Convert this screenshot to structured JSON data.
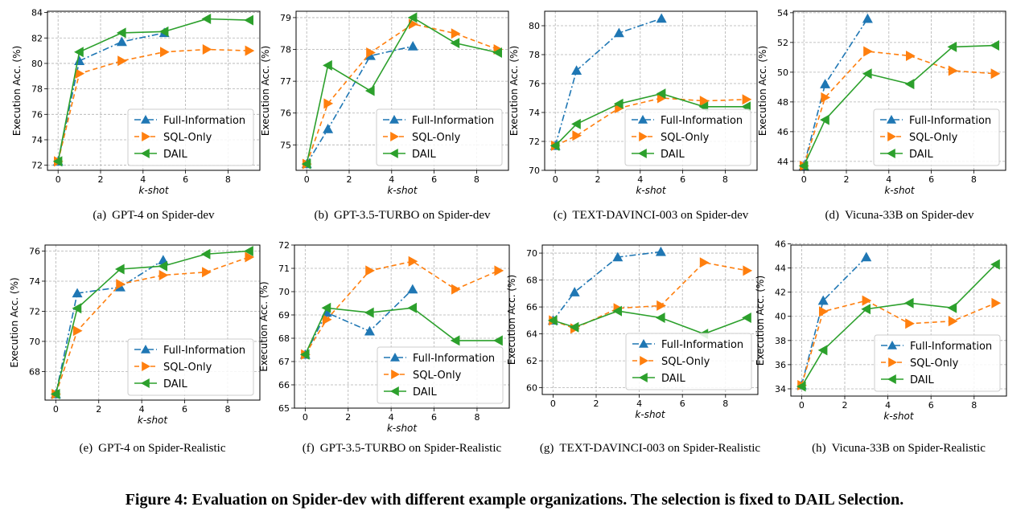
{
  "figure_caption": "Figure 4: Evaluation on Spider-dev with different example organizations. The selection is fixed to DAIL Selection.",
  "legend_labels": [
    "Full-Information",
    "SQL-Only",
    "DAIL"
  ],
  "series_colors": {
    "Full-Information": "#1f77b4",
    "SQL-Only": "#ff7f0e",
    "DAIL": "#2ca02c"
  },
  "chart_data": [
    {
      "type": "line",
      "caption_letter": "(a)",
      "caption": "GPT-4 on Spider-dev",
      "xlabel": "k-shot",
      "ylabel": "Execution Acc. (%)",
      "grid": true,
      "legend_position": "bottom-right",
      "xlim": [
        -0.5,
        9.5
      ],
      "ylim": [
        71.6,
        84.1
      ],
      "xticks": [
        0,
        2,
        4,
        6,
        8
      ],
      "yticks": [
        72,
        74,
        76,
        78,
        80,
        82,
        84
      ],
      "series": [
        {
          "name": "Full-Information",
          "x": [
            0,
            1,
            3,
            5
          ],
          "y": [
            72.3,
            80.2,
            81.7,
            82.4
          ]
        },
        {
          "name": "SQL-Only",
          "x": [
            0,
            1,
            3,
            5,
            7,
            9
          ],
          "y": [
            72.3,
            79.2,
            80.2,
            80.9,
            81.1,
            81.0
          ]
        },
        {
          "name": "DAIL",
          "x": [
            0,
            1,
            3,
            5,
            7,
            9
          ],
          "y": [
            72.3,
            80.9,
            82.4,
            82.5,
            83.5,
            83.4
          ]
        }
      ]
    },
    {
      "type": "line",
      "caption_letter": "(b)",
      "caption": "GPT-3.5-TURBO on Spider-dev",
      "xlabel": "k-shot",
      "ylabel": "Execution Acc. (%)",
      "grid": true,
      "legend_position": "bottom-right",
      "xlim": [
        -0.5,
        9.5
      ],
      "ylim": [
        74.2,
        79.2
      ],
      "xticks": [
        0,
        2,
        4,
        6,
        8
      ],
      "yticks": [
        75,
        76,
        77,
        78,
        79
      ],
      "series": [
        {
          "name": "Full-Information",
          "x": [
            0,
            1,
            3,
            5
          ],
          "y": [
            74.4,
            75.5,
            77.8,
            78.1
          ]
        },
        {
          "name": "SQL-Only",
          "x": [
            0,
            1,
            3,
            5,
            7,
            9
          ],
          "y": [
            74.4,
            76.3,
            77.9,
            78.8,
            78.5,
            78.0
          ]
        },
        {
          "name": "DAIL",
          "x": [
            0,
            1,
            3,
            5,
            7,
            9
          ],
          "y": [
            74.4,
            77.5,
            76.7,
            79.0,
            78.2,
            77.9
          ]
        }
      ]
    },
    {
      "type": "line",
      "caption_letter": "(c)",
      "caption": "TEXT-DAVINCI-003 on Spider-dev",
      "xlabel": "k-shot",
      "ylabel": "Execution Acc. (%)",
      "grid": true,
      "legend_position": "bottom-right",
      "xlim": [
        -0.5,
        9.5
      ],
      "ylim": [
        70.0,
        81.0
      ],
      "xticks": [
        0,
        2,
        4,
        6,
        8
      ],
      "yticks": [
        70,
        72,
        74,
        76,
        78,
        80
      ],
      "series": [
        {
          "name": "Full-Information",
          "x": [
            0,
            1,
            3,
            5
          ],
          "y": [
            71.7,
            76.9,
            79.5,
            80.5
          ]
        },
        {
          "name": "SQL-Only",
          "x": [
            0,
            1,
            3,
            5,
            7,
            9
          ],
          "y": [
            71.7,
            72.4,
            74.3,
            75.0,
            74.8,
            74.9
          ]
        },
        {
          "name": "DAIL",
          "x": [
            0,
            1,
            3,
            5,
            7,
            9
          ],
          "y": [
            71.7,
            73.2,
            74.6,
            75.3,
            74.4,
            74.4
          ]
        }
      ]
    },
    {
      "type": "line",
      "caption_letter": "(d)",
      "caption": "Vicuna-33B on Spider-dev",
      "xlabel": "k-shot",
      "ylabel": "Execution Acc. (%)",
      "grid": true,
      "legend_position": "bottom-right",
      "xlim": [
        -0.5,
        9.5
      ],
      "ylim": [
        43.4,
        54.1
      ],
      "xticks": [
        0,
        2,
        4,
        6,
        8
      ],
      "yticks": [
        44,
        46,
        48,
        50,
        52,
        54
      ],
      "series": [
        {
          "name": "Full-Information",
          "x": [
            0,
            1,
            3
          ],
          "y": [
            43.7,
            49.2,
            53.6
          ]
        },
        {
          "name": "SQL-Only",
          "x": [
            0,
            1,
            3,
            5,
            7,
            9
          ],
          "y": [
            43.7,
            48.3,
            51.4,
            51.1,
            50.1,
            49.9
          ]
        },
        {
          "name": "DAIL",
          "x": [
            0,
            1,
            3,
            5,
            7,
            9
          ],
          "y": [
            43.7,
            46.8,
            49.9,
            49.2,
            51.7,
            51.8
          ]
        }
      ]
    },
    {
      "type": "line",
      "caption_letter": "(e)",
      "caption": "GPT-4 on Spider-Realistic",
      "xlabel": "k-shot",
      "ylabel": "Execution Acc. (%)",
      "grid": true,
      "legend_position": "bottom-right",
      "xlim": [
        -0.5,
        9.5
      ],
      "ylim": [
        66.1,
        76.4
      ],
      "xticks": [
        0,
        2,
        4,
        6,
        8
      ],
      "yticks": [
        68,
        70,
        72,
        74,
        76
      ],
      "series": [
        {
          "name": "Full-Information",
          "x": [
            0,
            1,
            3,
            5
          ],
          "y": [
            66.5,
            73.2,
            73.6,
            75.4
          ]
        },
        {
          "name": "SQL-Only",
          "x": [
            0,
            1,
            3,
            5,
            7,
            9
          ],
          "y": [
            66.5,
            70.7,
            73.8,
            74.4,
            74.6,
            75.6
          ]
        },
        {
          "name": "DAIL",
          "x": [
            0,
            1,
            3,
            5,
            7,
            9
          ],
          "y": [
            66.5,
            72.2,
            74.8,
            75.0,
            75.8,
            76.0
          ]
        }
      ]
    },
    {
      "type": "line",
      "caption_letter": "(f)",
      "caption": "GPT-3.5-TURBO on Spider-Realistic",
      "xlabel": "k-shot",
      "ylabel": "Execution Acc. (%)",
      "grid": true,
      "legend_position": "bottom-right",
      "xlim": [
        -0.5,
        9.5
      ],
      "ylim": [
        65.0,
        72.0
      ],
      "xticks": [
        0,
        2,
        4,
        6,
        8
      ],
      "yticks": [
        65,
        66,
        67,
        68,
        69,
        70,
        71,
        72
      ],
      "series": [
        {
          "name": "Full-Information",
          "x": [
            0,
            1,
            3,
            5
          ],
          "y": [
            67.3,
            69.1,
            68.3,
            70.1
          ]
        },
        {
          "name": "SQL-Only",
          "x": [
            0,
            1,
            3,
            5,
            7,
            9
          ],
          "y": [
            67.3,
            68.8,
            70.9,
            71.3,
            70.1,
            70.9
          ]
        },
        {
          "name": "DAIL",
          "x": [
            0,
            1,
            3,
            5,
            7,
            9
          ],
          "y": [
            67.3,
            69.3,
            69.1,
            69.3,
            67.9,
            67.9
          ]
        }
      ]
    },
    {
      "type": "line",
      "caption_letter": "(g)",
      "caption": "TEXT-DAVINCI-003 on Spider-Realistic",
      "xlabel": "k-shot",
      "ylabel": "Execution Acc. (%)",
      "grid": true,
      "legend_position": "bottom-right",
      "xlim": [
        -0.5,
        9.5
      ],
      "ylim": [
        59.5,
        70.6
      ],
      "xticks": [
        0,
        2,
        4,
        6,
        8
      ],
      "yticks": [
        60,
        62,
        64,
        66,
        68,
        70
      ],
      "series": [
        {
          "name": "Full-Information",
          "x": [
            0,
            1,
            3,
            5
          ],
          "y": [
            65.0,
            67.1,
            69.7,
            70.1
          ]
        },
        {
          "name": "SQL-Only",
          "x": [
            0,
            1,
            3,
            5,
            7,
            9
          ],
          "y": [
            65.0,
            64.4,
            65.9,
            66.1,
            69.3,
            68.7
          ]
        },
        {
          "name": "DAIL",
          "x": [
            0,
            1,
            3,
            5,
            7,
            9
          ],
          "y": [
            65.0,
            64.5,
            65.7,
            65.2,
            64.0,
            65.2
          ]
        }
      ]
    },
    {
      "type": "line",
      "caption_letter": "(h)",
      "caption": "Vicuna-33B on Spider-Realistic",
      "xlabel": "k-shot",
      "ylabel": "Execution Acc. (%)",
      "grid": true,
      "legend_position": "bottom-right",
      "xlim": [
        -0.5,
        9.5
      ],
      "ylim": [
        33.4,
        45.9
      ],
      "xticks": [
        0,
        2,
        4,
        6,
        8
      ],
      "yticks": [
        34,
        36,
        38,
        40,
        42,
        44,
        46
      ],
      "series": [
        {
          "name": "Full-Information",
          "x": [
            0,
            1,
            3
          ],
          "y": [
            34.3,
            41.3,
            44.9
          ]
        },
        {
          "name": "SQL-Only",
          "x": [
            0,
            1,
            3,
            5,
            7,
            9
          ],
          "y": [
            34.3,
            40.4,
            41.3,
            39.4,
            39.6,
            41.1
          ]
        },
        {
          "name": "DAIL",
          "x": [
            0,
            1,
            3,
            5,
            7,
            9
          ],
          "y": [
            34.2,
            37.2,
            40.6,
            41.1,
            40.7,
            44.3
          ]
        }
      ]
    }
  ]
}
